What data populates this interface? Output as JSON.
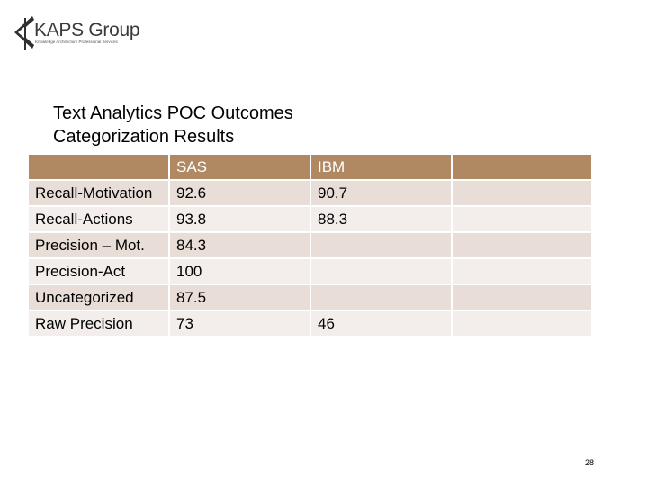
{
  "header": {
    "logo_name": "KAPS Group",
    "logo_tagline": "Knowledge Architecture Professional Services"
  },
  "slide": {
    "title_line1": "Text Analytics POC Outcomes",
    "title_line2": "Categorization Results"
  },
  "table": {
    "columns": [
      "",
      "SAS",
      "IBM",
      ""
    ],
    "rows": [
      [
        "Recall-Motivation",
        "92.6",
        "90.7",
        ""
      ],
      [
        "Recall-Actions",
        "93.8",
        "88.3",
        ""
      ],
      [
        "Precision – Mot.",
        "84.3",
        "",
        ""
      ],
      [
        "Precision-Act",
        "100",
        "",
        ""
      ],
      [
        "Uncategorized",
        "87.5",
        "",
        ""
      ],
      [
        "Raw Precision",
        "73",
        "46",
        ""
      ]
    ]
  },
  "footer": {
    "page_number": "28"
  },
  "colors": {
    "header_fill": "#b08963",
    "row_fill_odd": "#e8ddd7",
    "row_fill_even": "#f3eeeb"
  }
}
